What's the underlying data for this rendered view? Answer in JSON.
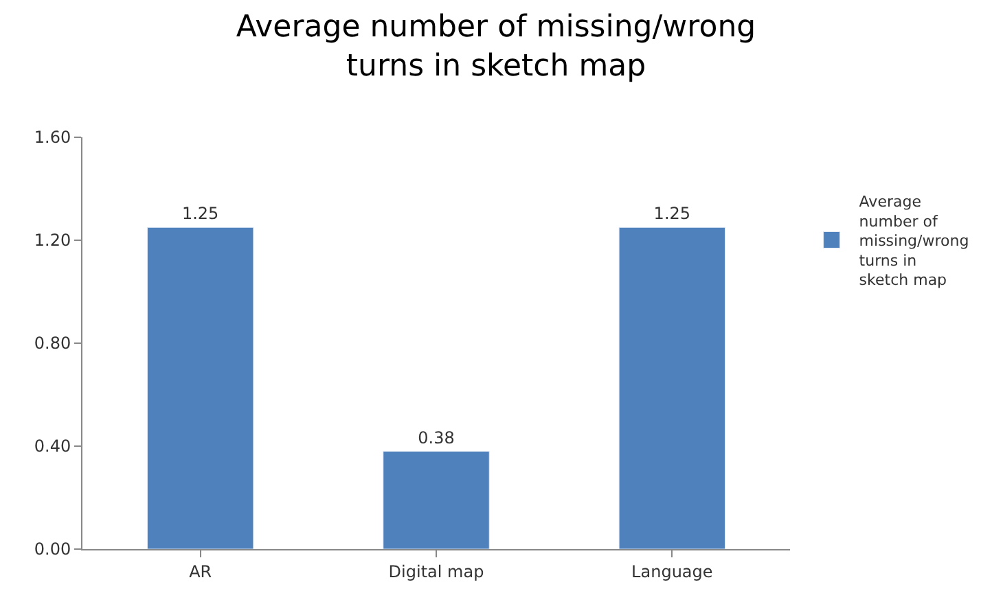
{
  "chart_data": {
    "type": "bar",
    "title": "Average number of missing/wrong turns in sketch map",
    "categories": [
      "AR",
      "Digital map",
      "Language"
    ],
    "series": [
      {
        "name": "Average number of missing/wrong turns in sketch map",
        "color": "#4f81bd",
        "values": [
          1.25,
          0.38,
          1.25
        ]
      }
    ],
    "ylim": [
      0,
      1.6
    ],
    "yticks": [
      {
        "value": 0,
        "label": "0.00"
      },
      {
        "value": 0.4,
        "label": "0.40"
      },
      {
        "value": 0.8,
        "label": "0.80"
      },
      {
        "value": 1.2,
        "label": "1.20"
      },
      {
        "value": 1.6,
        "label": "1.60"
      }
    ],
    "data_labels": true,
    "grid": false,
    "legend": "right"
  }
}
